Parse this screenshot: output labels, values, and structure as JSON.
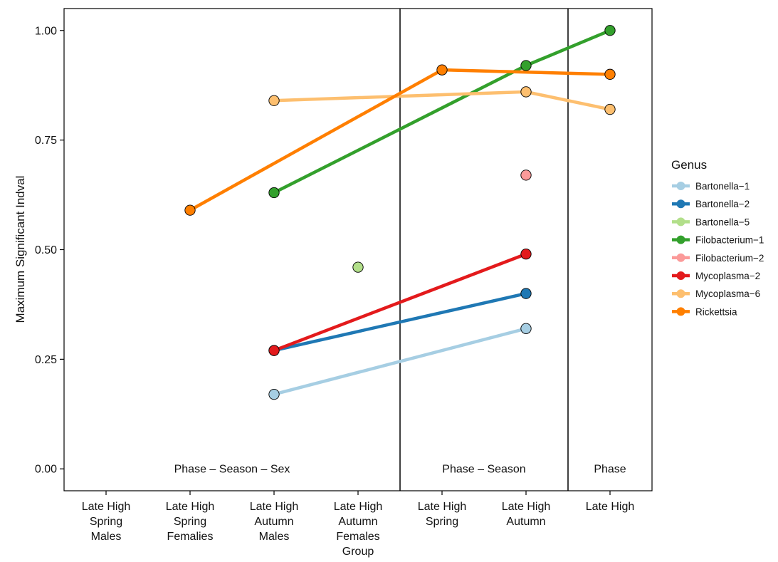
{
  "chart_data": {
    "type": "line",
    "ylabel": "Maximum Significant Indval",
    "xlabel": "",
    "ylim": [
      -0.05,
      1.05
    ],
    "yticks": [
      {
        "value": 0.0,
        "label": "0.00"
      },
      {
        "value": 0.25,
        "label": "0.25"
      },
      {
        "value": 0.5,
        "label": "0.50"
      },
      {
        "value": 0.75,
        "label": "0.75"
      },
      {
        "value": 1.0,
        "label": "1.00"
      }
    ],
    "categories": [
      [
        "Late High",
        "Spring",
        "Males"
      ],
      [
        "Late High",
        "Spring",
        "Femalies"
      ],
      [
        "Late High",
        "Autumn",
        "Males"
      ],
      [
        "Late High",
        "Autumn",
        "Females",
        "Group"
      ],
      [
        "Late High",
        "Spring"
      ],
      [
        "Late High",
        "Autumn"
      ],
      [
        "Late High"
      ]
    ],
    "regions": [
      {
        "label": "Phase – Season – Sex",
        "from": 0,
        "to": 3
      },
      {
        "label": "Phase – Season",
        "from": 4,
        "to": 5
      },
      {
        "label": "Phase",
        "from": 6,
        "to": 6
      }
    ],
    "region_label_y": 0.0,
    "grid": false,
    "legend": {
      "title": "Genus",
      "placement": "right"
    },
    "series": [
      {
        "name": "Bartonella−1",
        "color": "#a6cee3",
        "segments": [
          [
            [
              2,
              0.17
            ],
            [
              5,
              0.32
            ]
          ]
        ],
        "points": [
          [
            2,
            0.17
          ],
          [
            5,
            0.32
          ]
        ]
      },
      {
        "name": "Bartonella−2",
        "color": "#1f78b4",
        "segments": [
          [
            [
              2,
              0.27
            ],
            [
              5,
              0.4
            ]
          ]
        ],
        "points": [
          [
            2,
            0.27
          ],
          [
            5,
            0.4
          ]
        ]
      },
      {
        "name": "Bartonella−5",
        "color": "#b2df8a",
        "segments": [],
        "points": [
          [
            3,
            0.46
          ]
        ]
      },
      {
        "name": "Filobacterium−1",
        "color": "#33a02c",
        "segments": [
          [
            [
              2,
              0.63
            ],
            [
              5,
              0.92
            ],
            [
              6,
              1.0
            ]
          ]
        ],
        "points": [
          [
            2,
            0.63
          ],
          [
            5,
            0.92
          ],
          [
            6,
            1.0
          ]
        ]
      },
      {
        "name": "Filobacterium−2",
        "color": "#fb9a99",
        "segments": [],
        "points": [
          [
            5,
            0.67
          ]
        ]
      },
      {
        "name": "Mycoplasma−2",
        "color": "#e31a1c",
        "segments": [
          [
            [
              2,
              0.27
            ],
            [
              5,
              0.49
            ]
          ]
        ],
        "points": [
          [
            2,
            0.27
          ],
          [
            5,
            0.49
          ]
        ]
      },
      {
        "name": "Mycoplasma−6",
        "color": "#fdbf6f",
        "segments": [
          [
            [
              2,
              0.84
            ],
            [
              5,
              0.86
            ],
            [
              6,
              0.82
            ]
          ]
        ],
        "points": [
          [
            2,
            0.84
          ],
          [
            5,
            0.86
          ],
          [
            6,
            0.82
          ]
        ]
      },
      {
        "name": "Rickettsia",
        "color": "#ff7f00",
        "segments": [
          [
            [
              1,
              0.59
            ],
            [
              4,
              0.91
            ],
            [
              6,
              0.9
            ]
          ]
        ],
        "points": [
          [
            1,
            0.59
          ],
          [
            4,
            0.91
          ],
          [
            6,
            0.9
          ]
        ]
      }
    ]
  }
}
